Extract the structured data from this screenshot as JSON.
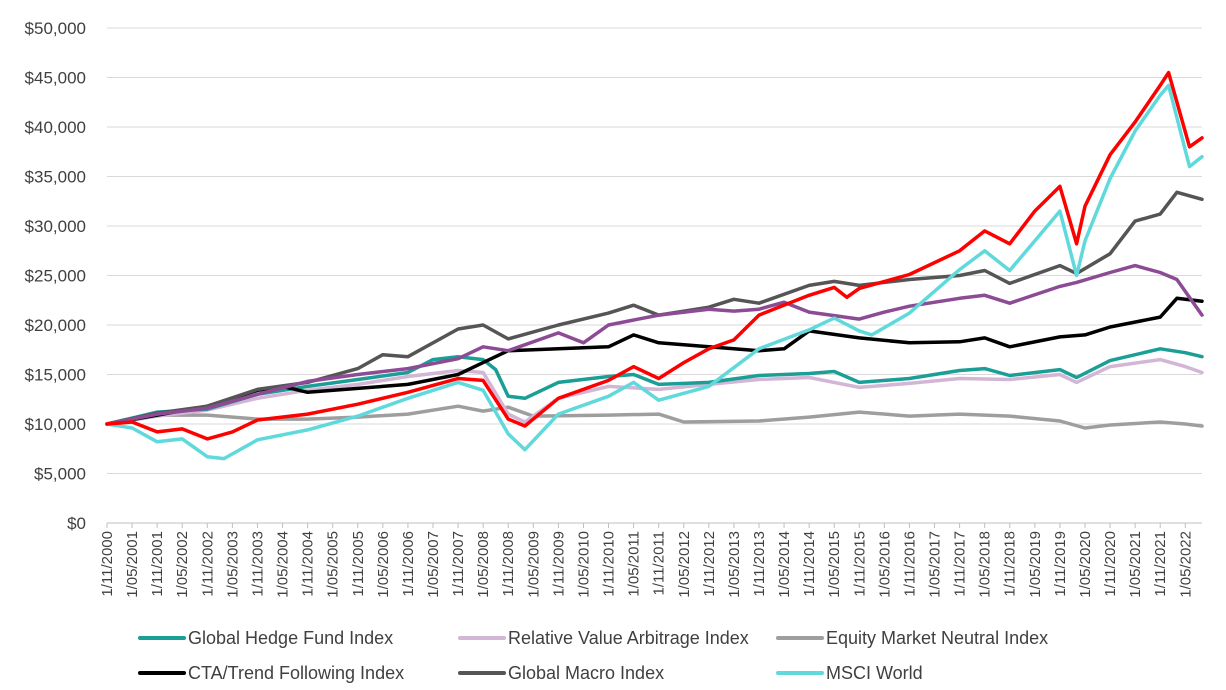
{
  "chart_data": {
    "type": "line",
    "title": "",
    "xlabel": "",
    "ylabel": "",
    "ylim": [
      0,
      50000
    ],
    "y_ticks": [
      "$0",
      "$5,000",
      "$10,000",
      "$15,000",
      "$20,000",
      "$25,000",
      "$30,000",
      "$35,000",
      "$40,000",
      "$45,000",
      "$50,000"
    ],
    "x_ticks": [
      "1/11/2000",
      "1/05/2001",
      "1/11/2001",
      "1/05/2002",
      "1/11/2002",
      "1/05/2003",
      "1/11/2003",
      "1/05/2004",
      "1/11/2004",
      "1/05/2005",
      "1/11/2005",
      "1/05/2006",
      "1/11/2006",
      "1/05/2007",
      "1/11/2007",
      "1/05/2008",
      "1/11/2008",
      "1/05/2009",
      "1/11/2009",
      "1/05/2010",
      "1/11/2010",
      "1/05/2011",
      "1/11/2011",
      "1/05/2012",
      "1/11/2012",
      "1/05/2013",
      "1/11/2013",
      "1/05/2014",
      "1/11/2014",
      "1/05/2015",
      "1/11/2015",
      "1/05/2016",
      "1/11/2016",
      "1/05/2017",
      "1/11/2017",
      "1/05/2018",
      "1/11/2018",
      "1/05/2019",
      "1/11/2019",
      "1/05/2020",
      "1/11/2020",
      "1/05/2021",
      "1/11/2021",
      "1/05/2022"
    ],
    "x_start": "2000-11",
    "x_end": "2022-09",
    "grid": "horizontal",
    "legend_position": "bottom",
    "series": [
      {
        "name": "Global Hedge Fund Index",
        "color": "#1a9e96",
        "legend": true,
        "points": [
          [
            "2000-11",
            10000
          ],
          [
            "2001-11",
            11200
          ],
          [
            "2002-11",
            11500
          ],
          [
            "2003-11",
            13000
          ],
          [
            "2004-11",
            13800
          ],
          [
            "2005-11",
            14500
          ],
          [
            "2006-11",
            15200
          ],
          [
            "2007-05",
            16500
          ],
          [
            "2007-11",
            16800
          ],
          [
            "2008-05",
            16500
          ],
          [
            "2008-08",
            15500
          ],
          [
            "2008-11",
            12800
          ],
          [
            "2009-03",
            12600
          ],
          [
            "2009-11",
            14200
          ],
          [
            "2010-11",
            14800
          ],
          [
            "2011-05",
            15000
          ],
          [
            "2011-11",
            14000
          ],
          [
            "2012-11",
            14200
          ],
          [
            "2013-11",
            14900
          ],
          [
            "2014-11",
            15100
          ],
          [
            "2015-05",
            15300
          ],
          [
            "2015-11",
            14200
          ],
          [
            "2016-11",
            14600
          ],
          [
            "2017-11",
            15400
          ],
          [
            "2018-05",
            15600
          ],
          [
            "2018-11",
            14900
          ],
          [
            "2019-11",
            15500
          ],
          [
            "2020-03",
            14700
          ],
          [
            "2020-11",
            16400
          ],
          [
            "2021-11",
            17600
          ],
          [
            "2022-05",
            17200
          ],
          [
            "2022-09",
            16800
          ]
        ]
      },
      {
        "name": "Relative Value Arbitrage Index",
        "color": "#d3b5d6",
        "legend": true,
        "points": [
          [
            "2000-11",
            10000
          ],
          [
            "2001-11",
            10800
          ],
          [
            "2002-11",
            11400
          ],
          [
            "2003-11",
            12600
          ],
          [
            "2004-11",
            13400
          ],
          [
            "2005-11",
            14000
          ],
          [
            "2006-11",
            14800
          ],
          [
            "2007-11",
            15400
          ],
          [
            "2008-05",
            15200
          ],
          [
            "2008-11",
            11000
          ],
          [
            "2009-03",
            10200
          ],
          [
            "2009-11",
            12600
          ],
          [
            "2010-11",
            13800
          ],
          [
            "2011-11",
            13500
          ],
          [
            "2012-11",
            14000
          ],
          [
            "2013-11",
            14500
          ],
          [
            "2014-11",
            14700
          ],
          [
            "2015-11",
            13700
          ],
          [
            "2016-11",
            14100
          ],
          [
            "2017-11",
            14600
          ],
          [
            "2018-11",
            14500
          ],
          [
            "2019-11",
            15000
          ],
          [
            "2020-03",
            14200
          ],
          [
            "2020-11",
            15800
          ],
          [
            "2021-11",
            16500
          ],
          [
            "2022-05",
            15800
          ],
          [
            "2022-09",
            15200
          ]
        ]
      },
      {
        "name": "Equity Market Neutral Index",
        "color": "#9e9e9e",
        "legend": true,
        "points": [
          [
            "2000-11",
            10000
          ],
          [
            "2001-11",
            10900
          ],
          [
            "2002-11",
            10900
          ],
          [
            "2003-11",
            10500
          ],
          [
            "2004-11",
            10500
          ],
          [
            "2005-11",
            10700
          ],
          [
            "2006-11",
            11000
          ],
          [
            "2007-11",
            11800
          ],
          [
            "2008-05",
            11300
          ],
          [
            "2008-11",
            11700
          ],
          [
            "2009-05",
            10800
          ],
          [
            "2010-11",
            10900
          ],
          [
            "2011-11",
            11000
          ],
          [
            "2012-05",
            10200
          ],
          [
            "2013-11",
            10300
          ],
          [
            "2014-11",
            10700
          ],
          [
            "2015-11",
            11200
          ],
          [
            "2016-11",
            10800
          ],
          [
            "2017-11",
            11000
          ],
          [
            "2018-11",
            10800
          ],
          [
            "2019-11",
            10300
          ],
          [
            "2020-05",
            9600
          ],
          [
            "2020-11",
            9900
          ],
          [
            "2021-11",
            10200
          ],
          [
            "2022-05",
            10000
          ],
          [
            "2022-09",
            9800
          ]
        ]
      },
      {
        "name": "CTA/Trend Following Index",
        "color": "#000000",
        "legend": true,
        "points": [
          [
            "2000-11",
            10000
          ],
          [
            "2001-11",
            10900
          ],
          [
            "2002-11",
            11800
          ],
          [
            "2003-11",
            13400
          ],
          [
            "2004-05",
            13800
          ],
          [
            "2004-11",
            13200
          ],
          [
            "2005-11",
            13600
          ],
          [
            "2006-11",
            14000
          ],
          [
            "2007-11",
            15000
          ],
          [
            "2008-05",
            16200
          ],
          [
            "2008-11",
            17400
          ],
          [
            "2009-11",
            17600
          ],
          [
            "2010-11",
            17800
          ],
          [
            "2011-05",
            19000
          ],
          [
            "2011-11",
            18200
          ],
          [
            "2012-11",
            17800
          ],
          [
            "2013-11",
            17400
          ],
          [
            "2014-05",
            17600
          ],
          [
            "2014-11",
            19400
          ],
          [
            "2015-11",
            18700
          ],
          [
            "2016-11",
            18200
          ],
          [
            "2017-11",
            18300
          ],
          [
            "2018-05",
            18700
          ],
          [
            "2018-11",
            17800
          ],
          [
            "2019-11",
            18800
          ],
          [
            "2020-05",
            19000
          ],
          [
            "2020-11",
            19800
          ],
          [
            "2021-11",
            20800
          ],
          [
            "2022-03",
            22700
          ],
          [
            "2022-09",
            22400
          ]
        ]
      },
      {
        "name": "Global Macro Index",
        "color": "#555555",
        "legend": true,
        "points": [
          [
            "2000-11",
            10000
          ],
          [
            "2001-11",
            11100
          ],
          [
            "2002-11",
            11800
          ],
          [
            "2003-11",
            13500
          ],
          [
            "2004-11",
            14200
          ],
          [
            "2005-11",
            15600
          ],
          [
            "2006-05",
            17000
          ],
          [
            "2006-11",
            16800
          ],
          [
            "2007-11",
            19600
          ],
          [
            "2008-05",
            20000
          ],
          [
            "2008-11",
            18600
          ],
          [
            "2009-11",
            20000
          ],
          [
            "2010-11",
            21200
          ],
          [
            "2011-05",
            22000
          ],
          [
            "2011-11",
            21000
          ],
          [
            "2012-11",
            21800
          ],
          [
            "2013-05",
            22600
          ],
          [
            "2013-11",
            22200
          ],
          [
            "2014-11",
            24000
          ],
          [
            "2015-05",
            24400
          ],
          [
            "2015-11",
            24000
          ],
          [
            "2016-11",
            24600
          ],
          [
            "2017-11",
            25000
          ],
          [
            "2018-05",
            25500
          ],
          [
            "2018-11",
            24200
          ],
          [
            "2019-11",
            26000
          ],
          [
            "2020-03",
            25200
          ],
          [
            "2020-11",
            27200
          ],
          [
            "2021-05",
            30500
          ],
          [
            "2021-11",
            31200
          ],
          [
            "2022-03",
            33400
          ],
          [
            "2022-09",
            32700
          ]
        ]
      },
      {
        "name": "Global Macro Index (purple)",
        "color": "#8c4b94",
        "legend": false,
        "points": [
          [
            "2000-11",
            10000
          ],
          [
            "2001-11",
            11000
          ],
          [
            "2002-11",
            11600
          ],
          [
            "2003-11",
            13000
          ],
          [
            "2004-11",
            14300
          ],
          [
            "2005-11",
            15000
          ],
          [
            "2006-11",
            15600
          ],
          [
            "2007-11",
            16600
          ],
          [
            "2008-05",
            17800
          ],
          [
            "2008-11",
            17400
          ],
          [
            "2009-11",
            19200
          ],
          [
            "2010-05",
            18200
          ],
          [
            "2010-11",
            20000
          ],
          [
            "2011-11",
            21000
          ],
          [
            "2012-11",
            21600
          ],
          [
            "2013-05",
            21400
          ],
          [
            "2013-11",
            21600
          ],
          [
            "2014-05",
            22300
          ],
          [
            "2014-11",
            21300
          ],
          [
            "2015-11",
            20600
          ],
          [
            "2016-05",
            21300
          ],
          [
            "2016-11",
            21900
          ],
          [
            "2017-11",
            22700
          ],
          [
            "2018-05",
            23000
          ],
          [
            "2018-11",
            22200
          ],
          [
            "2019-11",
            23900
          ],
          [
            "2020-03",
            24300
          ],
          [
            "2020-11",
            25300
          ],
          [
            "2021-05",
            26000
          ],
          [
            "2021-11",
            25300
          ],
          [
            "2022-03",
            24600
          ],
          [
            "2022-09",
            21000
          ]
        ]
      },
      {
        "name": "Red series",
        "color": "#ff0000",
        "legend": false,
        "points": [
          [
            "2000-11",
            10000
          ],
          [
            "2001-05",
            10200
          ],
          [
            "2001-11",
            9200
          ],
          [
            "2002-05",
            9500
          ],
          [
            "2002-11",
            8500
          ],
          [
            "2003-05",
            9200
          ],
          [
            "2003-11",
            10400
          ],
          [
            "2004-11",
            11000
          ],
          [
            "2005-11",
            12000
          ],
          [
            "2006-11",
            13200
          ],
          [
            "2007-11",
            14600
          ],
          [
            "2008-05",
            14400
          ],
          [
            "2008-11",
            10500
          ],
          [
            "2009-03",
            9800
          ],
          [
            "2009-11",
            12600
          ],
          [
            "2010-11",
            14400
          ],
          [
            "2011-05",
            15800
          ],
          [
            "2011-11",
            14600
          ],
          [
            "2012-05",
            16200
          ],
          [
            "2012-11",
            17600
          ],
          [
            "2013-05",
            18500
          ],
          [
            "2013-11",
            21000
          ],
          [
            "2014-11",
            23000
          ],
          [
            "2015-05",
            23800
          ],
          [
            "2015-08",
            22800
          ],
          [
            "2015-11",
            23700
          ],
          [
            "2016-11",
            25100
          ],
          [
            "2017-11",
            27500
          ],
          [
            "2018-05",
            29500
          ],
          [
            "2018-11",
            28200
          ],
          [
            "2019-05",
            31500
          ],
          [
            "2019-11",
            34000
          ],
          [
            "2020-03",
            28200
          ],
          [
            "2020-05",
            32000
          ],
          [
            "2020-11",
            37200
          ],
          [
            "2021-05",
            40500
          ],
          [
            "2021-11",
            44200
          ],
          [
            "2022-01",
            45500
          ],
          [
            "2022-06",
            38000
          ],
          [
            "2022-09",
            38900
          ]
        ]
      },
      {
        "name": "MSCI World",
        "color": "#5fd9db",
        "legend": true,
        "points": [
          [
            "2000-11",
            10000
          ],
          [
            "2001-05",
            9600
          ],
          [
            "2001-11",
            8200
          ],
          [
            "2002-05",
            8500
          ],
          [
            "2002-11",
            6700
          ],
          [
            "2003-03",
            6500
          ],
          [
            "2003-11",
            8400
          ],
          [
            "2004-11",
            9400
          ],
          [
            "2005-11",
            10800
          ],
          [
            "2006-11",
            12600
          ],
          [
            "2007-11",
            14200
          ],
          [
            "2008-05",
            13400
          ],
          [
            "2008-11",
            9000
          ],
          [
            "2009-03",
            7400
          ],
          [
            "2009-11",
            11000
          ],
          [
            "2010-11",
            12800
          ],
          [
            "2011-05",
            14200
          ],
          [
            "2011-11",
            12400
          ],
          [
            "2012-11",
            13800
          ],
          [
            "2013-11",
            17600
          ],
          [
            "2014-11",
            19500
          ],
          [
            "2015-05",
            20700
          ],
          [
            "2015-11",
            19400
          ],
          [
            "2016-02",
            19000
          ],
          [
            "2016-11",
            21200
          ],
          [
            "2017-11",
            25600
          ],
          [
            "2018-05",
            27500
          ],
          [
            "2018-11",
            25500
          ],
          [
            "2019-05",
            28500
          ],
          [
            "2019-11",
            31500
          ],
          [
            "2020-03",
            25000
          ],
          [
            "2020-05",
            28500
          ],
          [
            "2020-11",
            34800
          ],
          [
            "2021-05",
            39600
          ],
          [
            "2021-11",
            43200
          ],
          [
            "2022-01",
            44200
          ],
          [
            "2022-06",
            36000
          ],
          [
            "2022-09",
            37000
          ]
        ]
      }
    ],
    "legend_order": [
      "Global Hedge Fund Index",
      "Relative Value Arbitrage Index",
      "Equity Market Neutral Index",
      "CTA/Trend Following Index",
      "Global Macro Index",
      "MSCI World"
    ],
    "draw_order": [
      "Equity Market Neutral Index",
      "Relative Value Arbitrage Index",
      "Global Hedge Fund Index",
      "CTA/Trend Following Index",
      "Global Macro Index",
      "Global Macro Index (purple)",
      "MSCI World",
      "Red series"
    ]
  }
}
